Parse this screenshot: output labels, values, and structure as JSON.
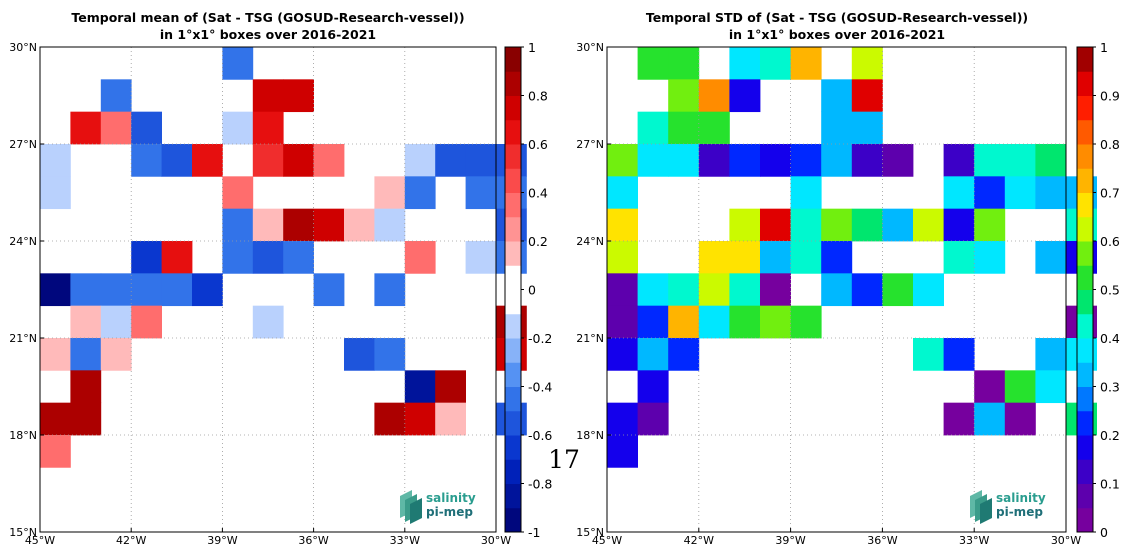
{
  "page_number": "17",
  "chart_data": [
    {
      "type": "heatmap",
      "title_line1": "Temporal mean of (Sat - TSG (GOSUD-Research-vessel))",
      "title_line2": "in 1°x1° boxes over 2016-2021",
      "xlim": [
        -45,
        -30
      ],
      "ylim": [
        15,
        30
      ],
      "x_ticks": [
        -45,
        -42,
        -39,
        -36,
        -33,
        -30
      ],
      "y_ticks": [
        15,
        18,
        21,
        24,
        27,
        30
      ],
      "x_tick_labels": [
        "45°W",
        "42°W",
        "39°W",
        "36°W",
        "33°W",
        "30°W"
      ],
      "y_tick_labels": [
        "15°N",
        "18°N",
        "21°N",
        "24°N",
        "27°N",
        "30°N"
      ],
      "grid": true,
      "colorbar": {
        "range": [
          -1,
          1
        ],
        "ticks": [
          1,
          0.8,
          0.6,
          0.4,
          0.2,
          0,
          -0.2,
          -0.4,
          -0.6,
          -0.8,
          -1
        ],
        "tick_labels": [
          "1",
          "0.8",
          "0.6",
          "0.4",
          "0.2",
          "0",
          "-0.2",
          "-0.4",
          "-0.6",
          "-0.8",
          "-1"
        ],
        "colormap": "blue-white-red",
        "levels": 20
      },
      "cells_note": "each cell is [lon_min, lat_min, value]",
      "cells": [
        [
          -39,
          29,
          -0.5
        ],
        [
          -43,
          28,
          -0.5
        ],
        [
          -38,
          28,
          0.7
        ],
        [
          -37,
          28,
          0.7
        ],
        [
          -44,
          27,
          0.6
        ],
        [
          -43,
          27,
          0.3
        ],
        [
          -42,
          27,
          -0.6
        ],
        [
          -39,
          27,
          -0.2
        ],
        [
          -38,
          27,
          0.6
        ],
        [
          -45,
          26,
          -0.2
        ],
        [
          -42,
          26,
          -0.5
        ],
        [
          -41,
          26,
          -0.6
        ],
        [
          -40,
          26,
          0.6
        ],
        [
          -38,
          26,
          0.5
        ],
        [
          -37,
          26,
          0.7
        ],
        [
          -36,
          26,
          0.4
        ],
        [
          -33,
          26,
          -0.2
        ],
        [
          -32,
          26,
          -0.6
        ],
        [
          -31,
          26,
          -0.6
        ],
        [
          -30,
          26,
          -0.6
        ],
        [
          -45,
          25,
          -0.2
        ],
        [
          -39,
          25,
          0.4
        ],
        [
          -34,
          25,
          0.2
        ],
        [
          -33,
          25,
          -0.4
        ],
        [
          -31,
          25,
          -0.4
        ],
        [
          -30,
          25,
          -0.5
        ],
        [
          -39,
          24,
          -0.4
        ],
        [
          -38,
          24,
          0.2
        ],
        [
          -37,
          24,
          0.8
        ],
        [
          -36,
          24,
          0.7
        ],
        [
          -35,
          24,
          0.2
        ],
        [
          -34,
          24,
          -0.2
        ],
        [
          -30,
          24,
          -0.6
        ],
        [
          -42,
          23,
          -0.7
        ],
        [
          -41,
          23,
          0.6
        ],
        [
          -39,
          23,
          -0.4
        ],
        [
          -38,
          23,
          -0.6
        ],
        [
          -37,
          23,
          -0.5
        ],
        [
          -33,
          23,
          0.3
        ],
        [
          -31,
          23,
          -0.2
        ],
        [
          -30,
          23,
          -0.5
        ],
        [
          -45,
          22,
          -0.95
        ],
        [
          -44,
          22,
          -0.5
        ],
        [
          -43,
          22,
          -0.4
        ],
        [
          -42,
          22,
          -0.4
        ],
        [
          -41,
          22,
          -0.5
        ],
        [
          -40,
          22,
          -0.7
        ],
        [
          -36,
          22,
          -0.4
        ],
        [
          -34,
          22,
          -0.4
        ],
        [
          -44,
          21,
          0.2
        ],
        [
          -43,
          21,
          -0.2
        ],
        [
          -42,
          21,
          0.3
        ],
        [
          -38,
          21,
          -0.2
        ],
        [
          -30,
          21,
          0.8
        ],
        [
          -45,
          20,
          0.2
        ],
        [
          -44,
          20,
          -0.4
        ],
        [
          -43,
          20,
          0.2
        ],
        [
          -35,
          20,
          -0.6
        ],
        [
          -34,
          20,
          -0.5
        ],
        [
          -30,
          20,
          0.7
        ],
        [
          -44,
          19,
          0.9
        ],
        [
          -33,
          19,
          -0.85
        ],
        [
          -32,
          19,
          0.8
        ],
        [
          -45,
          18,
          0.8
        ],
        [
          -44,
          18,
          0.8
        ],
        [
          -34,
          18,
          0.8
        ],
        [
          -33,
          18,
          0.7
        ],
        [
          -32,
          18,
          0.2
        ],
        [
          -30,
          18,
          -0.6
        ],
        [
          -45,
          17,
          0.3
        ]
      ]
    },
    {
      "type": "heatmap",
      "title_line1": "Temporal STD of (Sat - TSG (GOSUD-Research-vessel))",
      "title_line2": "in 1°x1° boxes over 2016-2021",
      "xlim": [
        -45,
        -30
      ],
      "ylim": [
        15,
        30
      ],
      "x_ticks": [
        -45,
        -42,
        -39,
        -36,
        -33,
        -30
      ],
      "y_ticks": [
        15,
        18,
        21,
        24,
        27,
        30
      ],
      "x_tick_labels": [
        "45°W",
        "42°W",
        "39°W",
        "36°W",
        "33°W",
        "30°W"
      ],
      "y_tick_labels": [
        "15°N",
        "18°N",
        "21°N",
        "24°N",
        "27°N",
        "30°N"
      ],
      "grid": true,
      "colorbar": {
        "range": [
          0,
          1
        ],
        "ticks": [
          1,
          0.9,
          0.8,
          0.7,
          0.6,
          0.5,
          0.4,
          0.3,
          0.2,
          0.1,
          0
        ],
        "tick_labels": [
          "1",
          "0.9",
          "0.8",
          "0.7",
          "0.6",
          "0.5",
          "0.4",
          "0.3",
          "0.2",
          "0.1",
          "0"
        ],
        "colormap": "jet",
        "levels": 20
      },
      "cells_note": "each cell is [lon_min, lat_min, value]",
      "cells": [
        [
          -44,
          29,
          0.5
        ],
        [
          -43,
          29,
          0.5
        ],
        [
          -41,
          29,
          0.375
        ],
        [
          -40,
          29,
          0.425
        ],
        [
          -39,
          29,
          0.725
        ],
        [
          -37,
          29,
          0.625
        ],
        [
          -43,
          28,
          0.575
        ],
        [
          -42,
          28,
          0.775
        ],
        [
          -41,
          28,
          0.175
        ],
        [
          -38,
          28,
          0.325
        ],
        [
          -37,
          28,
          0.925
        ],
        [
          -44,
          27,
          0.425
        ],
        [
          -43,
          27,
          0.5
        ],
        [
          -42,
          27,
          0.5
        ],
        [
          -38,
          27,
          0.325
        ],
        [
          -37,
          27,
          0.325
        ],
        [
          -45,
          26,
          0.575
        ],
        [
          -44,
          26,
          0.375
        ],
        [
          -43,
          26,
          0.375
        ],
        [
          -42,
          26,
          0.125
        ],
        [
          -41,
          26,
          0.225
        ],
        [
          -40,
          26,
          0.175
        ],
        [
          -39,
          26,
          0.225
        ],
        [
          -38,
          26,
          0.325
        ],
        [
          -37,
          26,
          0.125
        ],
        [
          -36,
          26,
          0.075
        ],
        [
          -34,
          26,
          0.125
        ],
        [
          -33,
          26,
          0.425
        ],
        [
          -32,
          26,
          0.425
        ],
        [
          -31,
          26,
          0.475
        ],
        [
          -45,
          25,
          0.375
        ],
        [
          -39,
          25,
          0.375
        ],
        [
          -34,
          25,
          0.375
        ],
        [
          -33,
          25,
          0.225
        ],
        [
          -32,
          25,
          0.375
        ],
        [
          -31,
          25,
          0.325
        ],
        [
          -30,
          25,
          0.325
        ],
        [
          -45,
          24,
          0.675
        ],
        [
          -41,
          24,
          0.625
        ],
        [
          -40,
          24,
          0.925
        ],
        [
          -39,
          24,
          0.425
        ],
        [
          -38,
          24,
          0.575
        ],
        [
          -37,
          24,
          0.475
        ],
        [
          -36,
          24,
          0.325
        ],
        [
          -35,
          24,
          0.625
        ],
        [
          -34,
          24,
          0.175
        ],
        [
          -33,
          24,
          0.575
        ],
        [
          -30,
          24,
          0.425
        ],
        [
          -45,
          23,
          0.625
        ],
        [
          -42,
          23,
          0.675
        ],
        [
          -41,
          23,
          0.675
        ],
        [
          -40,
          23,
          0.325
        ],
        [
          -39,
          23,
          0.425
        ],
        [
          -38,
          23,
          0.225
        ],
        [
          -34,
          23,
          0.425
        ],
        [
          -33,
          23,
          0.375
        ],
        [
          -31,
          23,
          0.325
        ],
        [
          -30,
          23,
          0.175
        ],
        [
          -45,
          22,
          0.075
        ],
        [
          -44,
          22,
          0.375
        ],
        [
          -43,
          22,
          0.425
        ],
        [
          -42,
          22,
          0.625
        ],
        [
          -41,
          22,
          0.425
        ],
        [
          -40,
          22,
          0.025
        ],
        [
          -38,
          22,
          0.325
        ],
        [
          -37,
          22,
          0.225
        ],
        [
          -36,
          22,
          0.525
        ],
        [
          -35,
          22,
          0.375
        ],
        [
          -45,
          21,
          0.075
        ],
        [
          -44,
          21,
          0.225
        ],
        [
          -43,
          21,
          0.725
        ],
        [
          -42,
          21,
          0.375
        ],
        [
          -41,
          21,
          0.525
        ],
        [
          -40,
          21,
          0.575
        ],
        [
          -39,
          21,
          0.525
        ],
        [
          -30,
          21,
          0.025
        ],
        [
          -45,
          20,
          0.175
        ],
        [
          -44,
          20,
          0.325
        ],
        [
          -43,
          20,
          0.225
        ],
        [
          -35,
          20,
          0.425
        ],
        [
          -34,
          20,
          0.225
        ],
        [
          -31,
          20,
          0.325
        ],
        [
          -30,
          20,
          0.375
        ],
        [
          -44,
          19,
          0.175
        ],
        [
          -33,
          19,
          0.025
        ],
        [
          -32,
          19,
          0.525
        ],
        [
          -31,
          19,
          0.375
        ],
        [
          -45,
          18,
          0.175
        ],
        [
          -44,
          18,
          0.075
        ],
        [
          -34,
          18,
          0.025
        ],
        [
          -33,
          18,
          0.325
        ],
        [
          -32,
          18,
          0.025
        ],
        [
          -30,
          18,
          0.475
        ],
        [
          -45,
          17,
          0.175
        ]
      ]
    }
  ],
  "logos": [
    {
      "name": "salinity-pi-mep-logo",
      "line1": "salinity",
      "line2": "pi-mep"
    },
    {
      "name": "salinity-pi-mep-logo",
      "line1": "salinity",
      "line2": "pi-mep"
    }
  ]
}
